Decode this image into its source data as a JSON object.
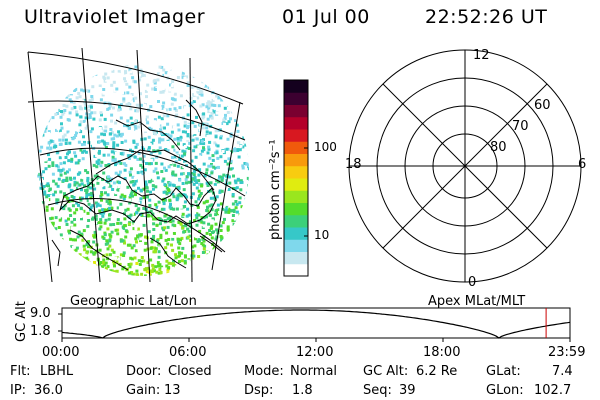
{
  "header": {
    "instrument": "Ultraviolet Imager",
    "date": "01 Jul 00",
    "time": "22:52:26 UT"
  },
  "panels": {
    "left_label": "Geographic Lat/Lon",
    "right_label": "Apex MLat/MLT"
  },
  "colorbar": {
    "label": "photon cm⁻²s⁻¹",
    "ticks": [
      "100",
      "10"
    ],
    "colors": [
      "#ffffff",
      "#c8e8f0",
      "#7fd8ec",
      "#36c8c8",
      "#3cd07a",
      "#54dc2c",
      "#9ae61e",
      "#e0ec10",
      "#f8cc10",
      "#f89a0c",
      "#f05a0c",
      "#d81820",
      "#b4002a",
      "#7a0030",
      "#3c0030",
      "#14001e"
    ]
  },
  "polar": {
    "mlt_top": "12",
    "mlt_left": "18",
    "mlt_right": "6",
    "mlt_bottom": "0",
    "lat_labels": [
      "60",
      "70",
      "80"
    ]
  },
  "altitude_plot": {
    "ylabel": "GC Alt",
    "yticks": [
      "9.0",
      "1.8"
    ],
    "xticks": [
      "00:00",
      "06:00",
      "12:00",
      "18:00",
      "23:59"
    ],
    "current_time_fraction": 0.953
  },
  "info": {
    "flt_label": "Flt:",
    "flt_value": "LBHL",
    "ip_label": "IP:",
    "ip_value": "36.0",
    "door_label": "Door:",
    "door_value": "Closed",
    "gain_label": "Gain:",
    "gain_value": "13",
    "mode_label": "Mode:",
    "mode_value": "Normal",
    "dsp_label": "Dsp:",
    "dsp_value": "1.8",
    "gcalt_label": "GC Alt:",
    "gcalt_value": "6.2 Re",
    "seq_label": "Seq:",
    "seq_value": "39",
    "glat_label": "GLat:",
    "glat_value": "7.4",
    "glon_label": "GLon:",
    "glon_value": "102.7"
  }
}
